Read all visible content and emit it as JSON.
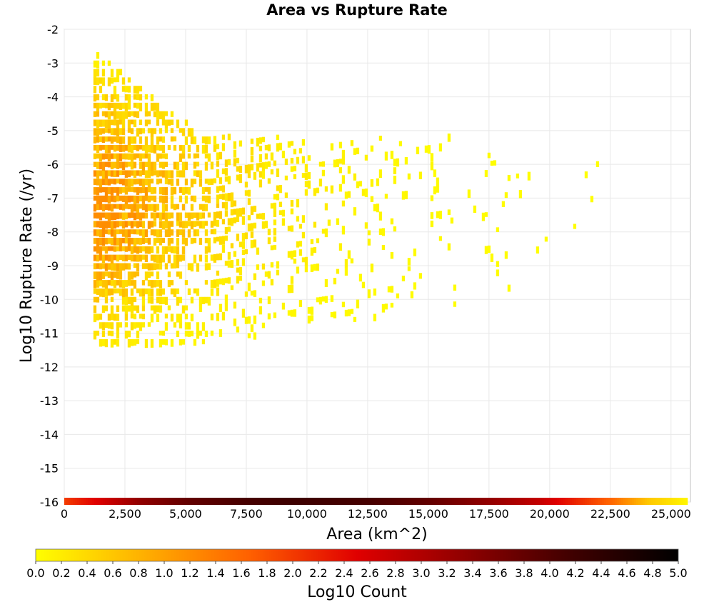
{
  "chart_data": {
    "type": "heatmap",
    "title": "Area vs Rupture Rate",
    "xlabel": "Area (km^2)",
    "ylabel": "Log10 Rupture Rate (/yr)",
    "xlim": [
      0,
      25800
    ],
    "ylim": [
      -16,
      -2
    ],
    "x_ticks": [
      "0",
      "2,500",
      "5,000",
      "7,500",
      "10,000",
      "12,500",
      "15,000",
      "17,500",
      "20,000",
      "22,500",
      "25,000"
    ],
    "x_tick_values": [
      0,
      2500,
      5000,
      7500,
      10000,
      12500,
      15000,
      17500,
      20000,
      22500,
      25000
    ],
    "y_ticks": [
      "-2",
      "-3",
      "-4",
      "-5",
      "-6",
      "-7",
      "-8",
      "-9",
      "-10",
      "-11",
      "-12",
      "-13",
      "-14",
      "-15",
      "-16"
    ],
    "y_tick_values": [
      -2,
      -3,
      -4,
      -5,
      -6,
      -7,
      -8,
      -9,
      -10,
      -11,
      -12,
      -13,
      -14,
      -15,
      -16
    ],
    "grid": true,
    "colorbar": {
      "label": "Log10 Count",
      "min": 0.0,
      "max": 5.0,
      "ticks": [
        "0.0",
        "0.2",
        "0.4",
        "0.6",
        "0.8",
        "1.0",
        "1.2",
        "1.4",
        "1.6",
        "1.8",
        "2.0",
        "2.2",
        "2.4",
        "2.6",
        "2.8",
        "3.0",
        "3.2",
        "3.4",
        "3.6",
        "3.8",
        "4.0",
        "4.2",
        "4.4",
        "4.6",
        "4.8",
        "5.0"
      ],
      "colors": [
        "#ffff00",
        "#ffb000",
        "#ff6000",
        "#e00000",
        "#900000",
        "#400000",
        "#000000"
      ]
    },
    "density_description": {
      "x_range": [
        1200,
        22000
      ],
      "y_range": [
        -11.5,
        -2.7
      ],
      "peak": {
        "x": 2500,
        "y": -5.5,
        "log10_count": 1.0
      }
    },
    "bottom_row": {
      "y": -16,
      "x_range": [
        0,
        25600
      ],
      "log10_count_profile": [
        {
          "x": 0,
          "v": 2.0
        },
        {
          "x": 1500,
          "v": 2.6
        },
        {
          "x": 3000,
          "v": 3.3
        },
        {
          "x": 5000,
          "v": 3.8
        },
        {
          "x": 7500,
          "v": 4.1
        },
        {
          "x": 9500,
          "v": 4.2
        },
        {
          "x": 12500,
          "v": 4.1
        },
        {
          "x": 15000,
          "v": 3.8
        },
        {
          "x": 17500,
          "v": 3.3
        },
        {
          "x": 19500,
          "v": 2.8
        },
        {
          "x": 21000,
          "v": 2.2
        },
        {
          "x": 22500,
          "v": 1.6
        },
        {
          "x": 24000,
          "v": 0.6
        },
        {
          "x": 25600,
          "v": 0.1
        }
      ]
    }
  }
}
